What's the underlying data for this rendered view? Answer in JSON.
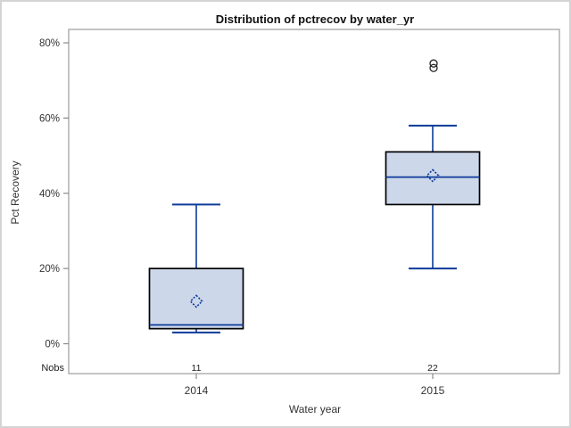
{
  "title": "Distribution of pctrecov by water_yr",
  "y_axis": {
    "label": "Pct Recovery",
    "ticks": [
      {
        "value": 0,
        "label": "0%"
      },
      {
        "value": 20,
        "label": "20%"
      },
      {
        "value": 40,
        "label": "40%"
      },
      {
        "value": 60,
        "label": "60%"
      },
      {
        "value": 80,
        "label": "80%"
      }
    ]
  },
  "x_axis": {
    "label": "Water year",
    "categories": [
      "2014",
      "2015"
    ]
  },
  "nobs": {
    "label": "Nobs",
    "values": [
      "11",
      "22"
    ]
  },
  "colors": {
    "box_fill": "#ccd7ea",
    "box_border": "#000000",
    "line": "#0d3a99",
    "outlier": "#222222",
    "frame": "#a3a3a3",
    "tick": "#8a8a8a",
    "page_border": "#d4d4d4"
  },
  "chart_data": {
    "type": "boxplot",
    "title": "Distribution of pctrecov by water_yr",
    "xlabel": "Water year",
    "ylabel": "Pct Recovery",
    "ylim": [
      0,
      80
    ],
    "y_tick_values": [
      0,
      20,
      40,
      60,
      80
    ],
    "y_tick_format": "percent",
    "grid": false,
    "legend": false,
    "categories": [
      "2014",
      "2015"
    ],
    "series": [
      {
        "category": "2014",
        "n": 11,
        "whisker_low": 3,
        "q1": 4,
        "median": 5,
        "q3": 20,
        "whisker_high": 37,
        "mean": 11.3,
        "outliers": []
      },
      {
        "category": "2015",
        "n": 22,
        "whisker_low": 20,
        "q1": 37,
        "median": 44.3,
        "q3": 51,
        "whisker_high": 58,
        "mean": 44.7,
        "outliers": [
          73.3,
          74.5
        ]
      }
    ]
  }
}
